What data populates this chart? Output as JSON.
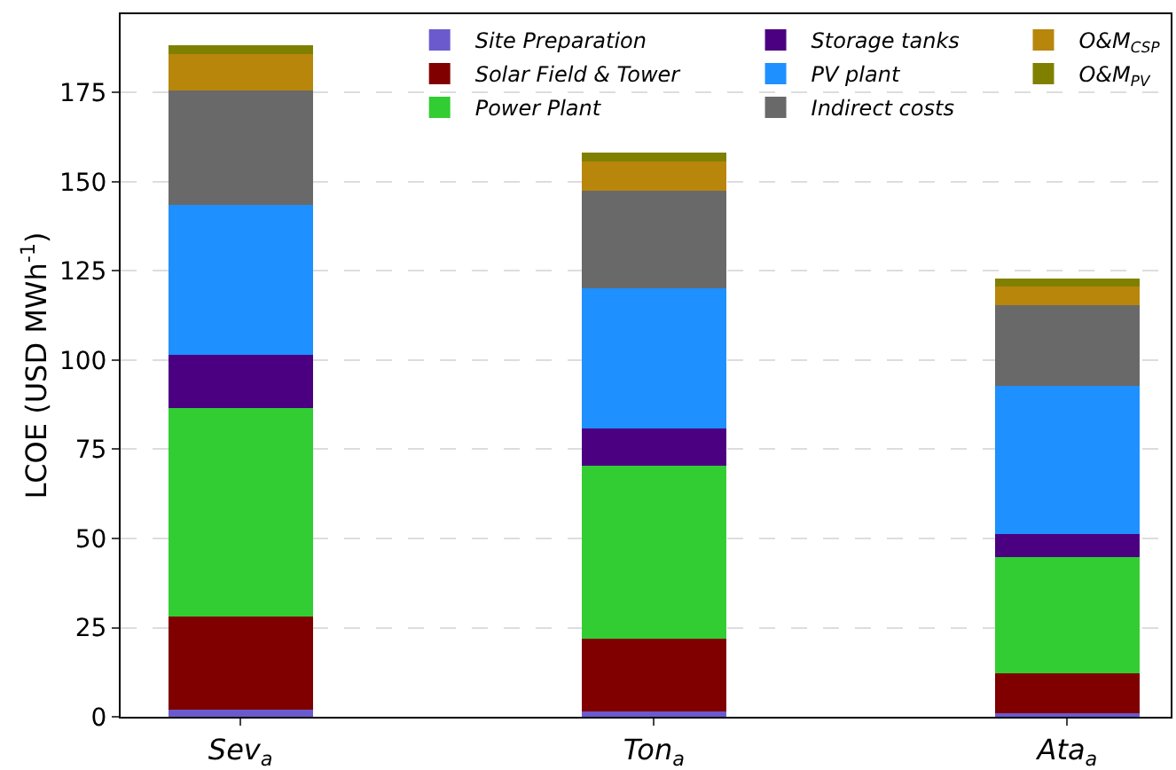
{
  "chart_data": {
    "type": "bar",
    "stacked": true,
    "ylabel": "LCOE (USD MWh$^{-1}$)",
    "categories": [
      "Sev$_{a}$",
      "Ton$_{a}$",
      "Ata$_{a}$"
    ],
    "ylim": [
      0,
      197
    ],
    "yticks": [
      0,
      25,
      50,
      75,
      100,
      125,
      150,
      175
    ],
    "grid": "y",
    "legend": "top right",
    "series": [
      {
        "name": "Site Preparation",
        "color": "#6a5acd",
        "values": [
          2.1,
          1.6,
          1.0
        ]
      },
      {
        "name": "Solar Field & Tower",
        "color": "#800000",
        "values": [
          26.1,
          20.4,
          11.2
        ]
      },
      {
        "name": "Power Plant",
        "color": "#32cd32",
        "values": [
          58.3,
          48.5,
          32.6
        ]
      },
      {
        "name": "Storage tanks",
        "color": "#4b0082",
        "values": [
          15.0,
          10.3,
          6.5
        ]
      },
      {
        "name": "PV plant",
        "color": "#1e90ff",
        "values": [
          42.0,
          39.4,
          41.6
        ]
      },
      {
        "name": "Indirect costs",
        "color": "#696969",
        "values": [
          32.1,
          27.4,
          22.4
        ]
      },
      {
        "name": "O&M$_{CSP}$",
        "color": "#b8860b",
        "values": [
          10.3,
          8.0,
          5.4
        ]
      },
      {
        "name": "O&M$_{PV}$",
        "color": "#808000",
        "values": [
          2.3,
          2.6,
          2.3
        ]
      }
    ]
  }
}
